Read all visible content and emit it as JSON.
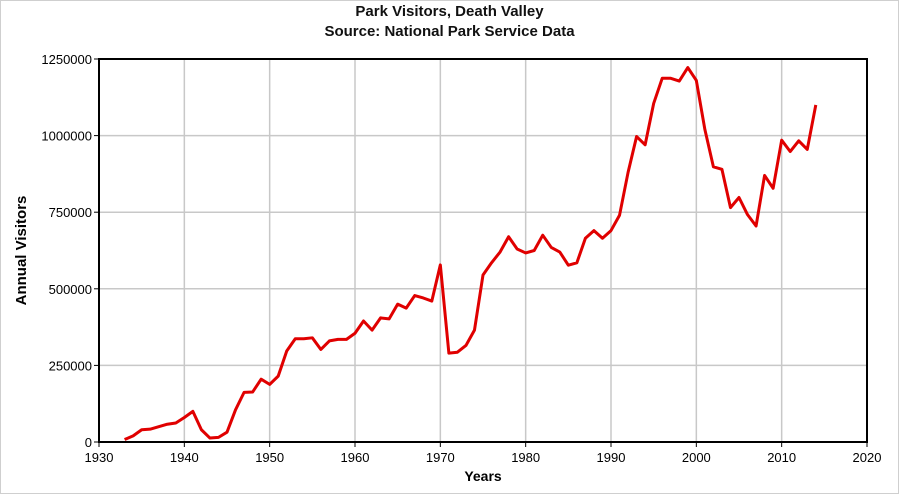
{
  "chart_data": {
    "type": "line",
    "title": "Park Visitors, Death Valley",
    "subtitle": "Source: National Park Service Data",
    "xlabel": "Years",
    "ylabel": "Annual Visitors",
    "xlim": [
      1930,
      2020
    ],
    "ylim": [
      0,
      1250000
    ],
    "xticks": [
      1930,
      1940,
      1950,
      1960,
      1970,
      1980,
      1990,
      2000,
      2010,
      2020
    ],
    "yticks": [
      0,
      250000,
      500000,
      750000,
      1000000,
      1250000
    ],
    "grid": true,
    "line_color": "#e00000",
    "series": [
      {
        "x": [
          1933,
          1934,
          1935,
          1936,
          1937,
          1938,
          1939,
          1940,
          1941,
          1942,
          1943,
          1944,
          1945,
          1946,
          1947,
          1948,
          1949,
          1950,
          1951,
          1952,
          1953,
          1954,
          1955,
          1956,
          1957,
          1958,
          1959,
          1960,
          1961,
          1962,
          1963,
          1964,
          1965,
          1966,
          1967,
          1968,
          1969,
          1970,
          1971,
          1972,
          1973,
          1974,
          1975,
          1976,
          1977,
          1978,
          1979,
          1980,
          1981,
          1982,
          1983,
          1984,
          1985,
          1986,
          1987,
          1988,
          1989,
          1990,
          1991,
          1992,
          1993,
          1994,
          1995,
          1996,
          1997,
          1998,
          1999,
          2000,
          2001,
          2002,
          2003,
          2004,
          2005,
          2006,
          2007,
          2008,
          2009,
          2010,
          2011,
          2012,
          2013,
          2014
        ],
        "values": [
          8000,
          20000,
          40000,
          42000,
          50000,
          58000,
          62000,
          80000,
          100000,
          40000,
          13000,
          15000,
          32000,
          105000,
          162000,
          163000,
          205000,
          188000,
          215000,
          297000,
          337000,
          337000,
          340000,
          302000,
          330000,
          335000,
          335000,
          355000,
          395000,
          365000,
          405000,
          402000,
          450000,
          437000,
          478000,
          470000,
          460000,
          578000,
          290000,
          293000,
          315000,
          365000,
          545000,
          585000,
          620000,
          670000,
          630000,
          617000,
          625000,
          675000,
          635000,
          620000,
          577000,
          585000,
          665000,
          690000,
          665000,
          690000,
          740000,
          880000,
          997000,
          970000,
          1105000,
          1187000,
          1187000,
          1178000,
          1222000,
          1180000,
          1020000,
          898000,
          890000,
          765000,
          798000,
          742000,
          705000,
          870000,
          828000,
          985000,
          948000,
          983000,
          955000,
          1100000
        ]
      }
    ]
  }
}
